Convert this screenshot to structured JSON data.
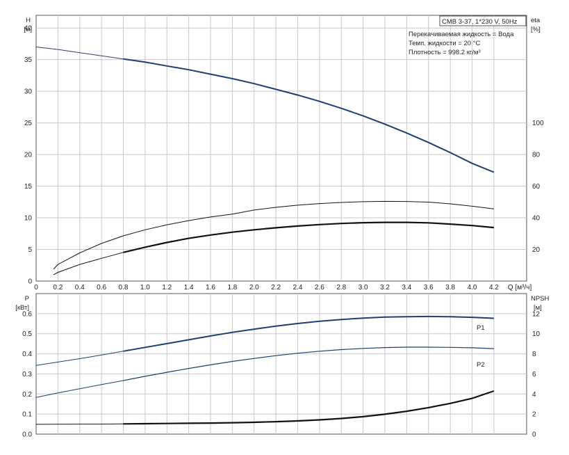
{
  "chart_data": [
    {
      "type": "line",
      "info_box": "CMB 3-37, 1*230 V, 50Hz",
      "notes": [
        "Перекачиваемая жидкость = Вода",
        "Темп. жидкости = 20 °C",
        "Плотность = 998.2 кг/м³"
      ],
      "x_axis": {
        "label": "Q [м³/ч]",
        "ticks": [
          "0",
          "0.2",
          "0.4",
          "0.6",
          "0.8",
          "1.0",
          "1.2",
          "1.4",
          "1.6",
          "1.8",
          "2.0",
          "2.2",
          "2.4",
          "2.6",
          "2.8",
          "3.0",
          "3.2",
          "3.4",
          "3.6",
          "3.8",
          "4.0",
          "4.2"
        ],
        "range": [
          0,
          4.5
        ]
      },
      "y_left": {
        "label": "H",
        "unit": "[м]",
        "ticks": [
          "0",
          "5",
          "10",
          "15",
          "20",
          "25",
          "30",
          "35",
          "40"
        ],
        "range": [
          0,
          42
        ]
      },
      "y_right": {
        "label": "eta",
        "unit": "[%]",
        "ticks": [
          "20",
          "40",
          "60",
          "80",
          "100"
        ],
        "range": [
          0,
          168
        ]
      },
      "grid": true,
      "series": [
        {
          "x": [
            0,
            0.2,
            0.4,
            0.6,
            0.8,
            1.0,
            1.2,
            1.4,
            1.6,
            1.8,
            2.0,
            2.2,
            2.4,
            2.6,
            2.8,
            3.0,
            3.2,
            3.4,
            3.6,
            3.8,
            4.0,
            4.2
          ],
          "y": [
            37.0,
            36.6,
            36.1,
            35.6,
            35.1,
            34.6,
            34.0,
            33.4,
            32.7,
            32.0,
            31.2,
            30.3,
            29.4,
            28.4,
            27.3,
            26.1,
            24.8,
            23.4,
            21.9,
            20.3,
            18.6,
            17.2
          ]
        },
        {
          "x": [
            0.16,
            0.2,
            0.4,
            0.6,
            0.8,
            1.0,
            1.2,
            1.4,
            1.6,
            1.8,
            2.0,
            2.2,
            2.4,
            2.6,
            2.8,
            3.0,
            3.2,
            3.4,
            3.6,
            3.8,
            4.0,
            4.2
          ],
          "y": [
            7.5,
            10.5,
            17.8,
            23.8,
            28.6,
            32.4,
            35.6,
            38.2,
            40.5,
            42.3,
            44.9,
            46.6,
            48.0,
            49.0,
            49.7,
            50.2,
            50.4,
            50.3,
            49.9,
            48.8,
            47.3,
            45.6
          ]
        },
        {
          "x": [
            0.16,
            0.2,
            0.4,
            0.6,
            0.8,
            1.0,
            1.2,
            1.4,
            1.6,
            1.8,
            2.0,
            2.2,
            2.4,
            2.6,
            2.8,
            3.0,
            3.2,
            3.4,
            3.6,
            3.8,
            4.0,
            4.2
          ],
          "y": [
            4.0,
            5.5,
            10.5,
            14.4,
            18.1,
            21.4,
            24.4,
            27.0,
            29.1,
            30.9,
            32.4,
            33.7,
            34.8,
            35.7,
            36.4,
            36.9,
            37.1,
            37.1,
            36.8,
            36.0,
            35.1,
            33.8
          ]
        }
      ]
    },
    {
      "type": "line",
      "x_axis": {
        "range": [
          0,
          4.5
        ]
      },
      "y_left": {
        "label": "P",
        "unit": "[кВт]",
        "ticks": [
          "0.0",
          "0.1",
          "0.2",
          "0.3",
          "0.4",
          "0.5",
          "0.6"
        ],
        "range": [
          0,
          0.7
        ]
      },
      "y_right": {
        "label": "NPSH",
        "unit": "[м]",
        "ticks": [
          "0",
          "2",
          "4",
          "6",
          "8",
          "10",
          "12"
        ],
        "range": [
          0,
          14
        ]
      },
      "grid": true,
      "series": [
        {
          "name": "P1",
          "x": [
            0,
            0.2,
            0.4,
            0.6,
            0.8,
            1.0,
            1.2,
            1.4,
            1.6,
            1.8,
            2.0,
            2.2,
            2.4,
            2.6,
            2.8,
            3.0,
            3.2,
            3.4,
            3.6,
            3.8,
            4.0,
            4.2
          ],
          "y": [
            0.342,
            0.359,
            0.376,
            0.394,
            0.413,
            0.432,
            0.451,
            0.47,
            0.489,
            0.507,
            0.523,
            0.538,
            0.551,
            0.562,
            0.571,
            0.578,
            0.583,
            0.585,
            0.586,
            0.585,
            0.582,
            0.577
          ]
        },
        {
          "name": "P2",
          "x": [
            0,
            0.2,
            0.4,
            0.6,
            0.8,
            1.0,
            1.2,
            1.4,
            1.6,
            1.8,
            2.0,
            2.2,
            2.4,
            2.6,
            2.8,
            3.0,
            3.2,
            3.4,
            3.6,
            3.8,
            4.0,
            4.2
          ],
          "y": [
            0.183,
            0.205,
            0.226,
            0.247,
            0.267,
            0.288,
            0.308,
            0.327,
            0.345,
            0.362,
            0.377,
            0.391,
            0.403,
            0.413,
            0.421,
            0.427,
            0.431,
            0.433,
            0.433,
            0.432,
            0.43,
            0.426
          ]
        },
        {
          "x": [
            0,
            0.2,
            0.4,
            0.6,
            0.8,
            1.0,
            1.2,
            1.4,
            1.6,
            1.8,
            2.0,
            2.2,
            2.4,
            2.6,
            2.8,
            3.0,
            3.2,
            3.4,
            3.6,
            3.8,
            4.0,
            4.2
          ],
          "y": [
            0.98,
            0.99,
            1.0,
            1.0,
            1.02,
            1.04,
            1.06,
            1.08,
            1.1,
            1.14,
            1.18,
            1.24,
            1.32,
            1.42,
            1.56,
            1.74,
            1.98,
            2.28,
            2.64,
            3.06,
            3.56,
            4.3
          ]
        }
      ]
    }
  ]
}
